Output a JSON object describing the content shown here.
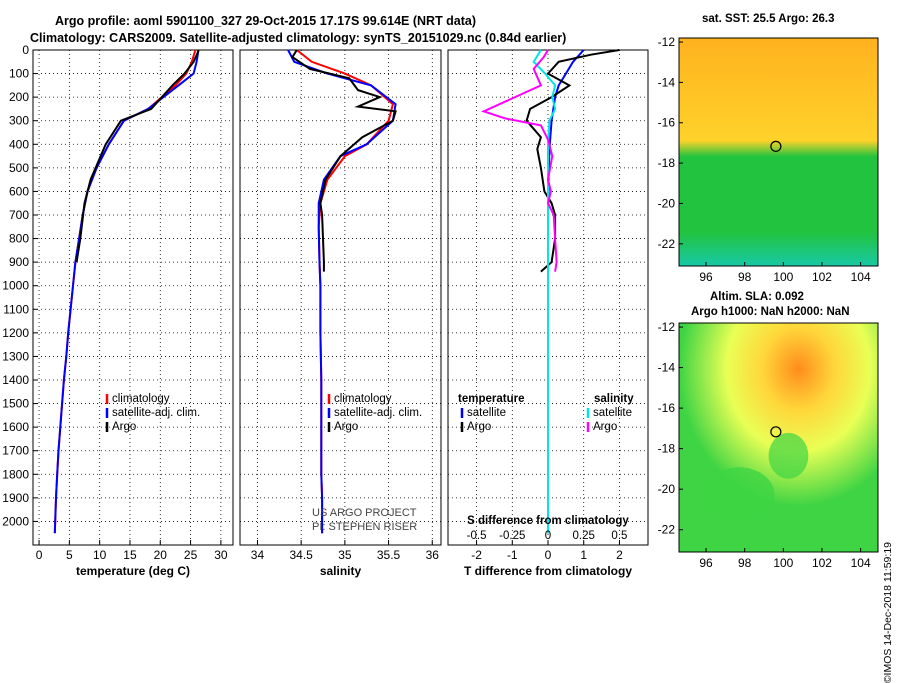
{
  "header": {
    "line1": "Argo profile: aoml 5901100_327 29-Oct-2015 17.17S 99.614E (NRT data)",
    "line2": "Climatology: CARS2009. Satellite-adjusted climatology: synTS_20151029.nc (0.84d earlier)"
  },
  "chart_data": [
    {
      "type": "line",
      "id": "temperature",
      "xlabel": "temperature (deg C)",
      "ylabel": "",
      "xlim": [
        -1,
        32
      ],
      "ylim": [
        2100,
        0
      ],
      "xticks": [
        0,
        5,
        10,
        15,
        20,
        25,
        30
      ],
      "yticks": [
        0,
        100,
        200,
        300,
        400,
        500,
        600,
        700,
        800,
        900,
        1000,
        1100,
        1200,
        1300,
        1400,
        1500,
        1600,
        1700,
        1800,
        1900,
        2000
      ],
      "legend": [
        "climatology",
        "satellite-adj. clim.",
        "Argo"
      ],
      "series": [
        {
          "name": "climatology",
          "color": "#ff0000",
          "x": [
            25.8,
            25.2,
            24.3,
            22.5,
            18.0,
            14.0,
            11.5,
            9.5,
            8.0,
            7.2,
            6.6,
            6.0,
            5.6,
            5.2,
            4.8,
            4.5,
            4.1,
            3.8,
            3.5,
            3.2,
            3.0,
            2.8,
            2.6
          ],
          "y": [
            0,
            50,
            100,
            150,
            250,
            300,
            400,
            500,
            600,
            700,
            800,
            900,
            1000,
            1100,
            1200,
            1300,
            1400,
            1500,
            1600,
            1700,
            1800,
            1900,
            2050
          ]
        },
        {
          "name": "satellite-adj. clim.",
          "color": "#0000ff",
          "x": [
            26.3,
            26.0,
            25.5,
            23.0,
            18.0,
            14.0,
            11.5,
            9.5,
            8.0,
            7.2,
            6.6,
            6.0,
            5.6,
            5.2,
            4.8,
            4.5,
            4.1,
            3.8,
            3.5,
            3.2,
            3.0,
            2.8,
            2.6
          ],
          "y": [
            0,
            50,
            100,
            150,
            250,
            300,
            400,
            500,
            600,
            700,
            800,
            900,
            1000,
            1100,
            1200,
            1300,
            1400,
            1500,
            1600,
            1700,
            1800,
            1900,
            2050
          ]
        },
        {
          "name": "Argo",
          "color": "#000000",
          "x": [
            26.3,
            26.2,
            25.5,
            24.0,
            22.0,
            18.5,
            13.5,
            11.0,
            8.5,
            7.5,
            6.8,
            6.2
          ],
          "y": [
            0,
            10,
            50,
            100,
            150,
            250,
            300,
            400,
            550,
            650,
            800,
            900
          ]
        }
      ]
    },
    {
      "type": "line",
      "id": "salinity",
      "xlabel": "salinity",
      "xlim": [
        33.8,
        36.1
      ],
      "ylim": [
        2100,
        0
      ],
      "xticks": [
        34,
        34.5,
        35,
        35.5,
        36
      ],
      "legend": [
        "climatology",
        "satellite-adj. clim.",
        "Argo"
      ],
      "series": [
        {
          "name": "climatology",
          "color": "#ff0000",
          "x": [
            34.45,
            34.62,
            35.0,
            35.3,
            35.55,
            35.5,
            35.25,
            35.0,
            34.8,
            34.72,
            34.7,
            34.71,
            34.72,
            34.72,
            34.73,
            34.73,
            34.73,
            34.74,
            34.74,
            34.74
          ],
          "y": [
            0,
            50,
            100,
            150,
            230,
            300,
            400,
            450,
            550,
            650,
            750,
            900,
            1000,
            1200,
            1400,
            1600,
            1800,
            1900,
            2000,
            2050
          ]
        },
        {
          "name": "satellite-adj. clim.",
          "color": "#0000ff",
          "x": [
            34.35,
            34.42,
            34.8,
            35.3,
            35.58,
            35.55,
            35.25,
            34.95,
            34.76,
            34.7,
            34.7,
            34.71,
            34.72,
            34.72,
            34.73,
            34.73,
            34.73,
            34.74,
            34.74,
            34.74
          ],
          "y": [
            0,
            50,
            100,
            150,
            230,
            300,
            400,
            450,
            550,
            650,
            750,
            900,
            1000,
            1200,
            1400,
            1600,
            1800,
            1900,
            2000,
            2050
          ]
        },
        {
          "name": "Argo",
          "color": "#000000",
          "x": [
            34.45,
            34.4,
            34.6,
            35.05,
            35.15,
            35.4,
            35.15,
            35.58,
            35.55,
            35.2,
            34.95,
            34.78,
            34.72,
            34.74,
            34.75,
            34.76,
            34.76
          ],
          "y": [
            0,
            30,
            80,
            120,
            170,
            200,
            240,
            260,
            300,
            370,
            450,
            550,
            650,
            700,
            800,
            900,
            940
          ]
        }
      ]
    },
    {
      "type": "line",
      "id": "difference",
      "xlabel": "T difference from climatology",
      "xlabel_top": "S difference from climatology",
      "xlim": [
        -2.8,
        2.8
      ],
      "ylim": [
        2100,
        0
      ],
      "xticks": [
        -2,
        -1,
        0,
        1,
        2
      ],
      "xtick_labels": [
        "-2",
        "-1",
        "0",
        "1",
        "2"
      ],
      "xticks_s": [
        -0.5,
        -0.25,
        0,
        0.25,
        0.5
      ],
      "xtick_labels_s": [
        "-0.5",
        "-0.25",
        "0",
        "0.25",
        "0.5"
      ],
      "legend_left_title": "temperature",
      "legend_right_title": "salinity",
      "legend_left": [
        "satellite",
        "Argo"
      ],
      "legend_right": [
        "satellite",
        "Argo"
      ],
      "series": [
        {
          "name": "T satellite",
          "color": "#0000ff",
          "units": "T",
          "x": [
            1.0,
            0.7,
            0.5,
            0.3,
            0.2,
            0.1,
            0.05,
            0.02,
            0.0,
            0.0,
            0.0,
            0.0,
            0.0,
            0.0
          ],
          "y": [
            0,
            50,
            100,
            150,
            200,
            300,
            400,
            500,
            700,
            900,
            1200,
            1500,
            1800,
            2050
          ]
        },
        {
          "name": "T Argo",
          "color": "#000000",
          "units": "T",
          "x": [
            2.0,
            1.2,
            0.3,
            0.0,
            0.6,
            0.1,
            -0.5,
            -0.6,
            -0.2,
            -0.3,
            -0.2,
            -0.1,
            0.1,
            0.2,
            0.2,
            0.1,
            -0.2
          ],
          "y": [
            0,
            20,
            50,
            100,
            150,
            200,
            250,
            300,
            370,
            420,
            500,
            600,
            650,
            700,
            800,
            900,
            940
          ]
        },
        {
          "name": "S satellite",
          "color": "#00e5e5",
          "units": "S",
          "x": [
            -0.05,
            -0.1,
            -0.02,
            0.05,
            0.03,
            0.05,
            0.01,
            0.0,
            0.0,
            0.0,
            0.0,
            0.0,
            0.0,
            0.0
          ],
          "y": [
            0,
            50,
            100,
            150,
            200,
            250,
            300,
            400,
            600,
            800,
            1200,
            1500,
            1800,
            2050
          ]
        },
        {
          "name": "S Argo",
          "color": "#ff00ff",
          "units": "S",
          "x": [
            0.0,
            -0.03,
            -0.1,
            -0.05,
            -0.45,
            -0.3,
            -0.05,
            0.0,
            0.03,
            0.0,
            0.02,
            0.0,
            0.04,
            0.05,
            0.06,
            0.05
          ],
          "y": [
            0,
            30,
            80,
            150,
            260,
            290,
            320,
            380,
            450,
            550,
            600,
            650,
            700,
            800,
            900,
            940
          ]
        }
      ]
    }
  ],
  "watermark": {
    "project": "US ARGO PROJECT",
    "pi": "PI: STEPHEN RISER"
  },
  "maps": {
    "sst_title": "sat. SST: 25.5 Argo: 26.3",
    "sla_title_line1": "Altim. SLA: 0.092",
    "sla_title_line2": "Argo h1000: NaN h2000: NaN",
    "xticks": [
      96,
      98,
      100,
      102,
      104
    ],
    "yticks": [
      -12,
      -14,
      -16,
      -18,
      -20,
      -22
    ],
    "xlim": [
      94.6,
      104.9
    ],
    "ylim": [
      -23.1,
      -11.8
    ],
    "argo_position": {
      "lon": 99.614,
      "lat": -17.17
    },
    "sst_colors": {
      "warm": "#ffb21e",
      "mid": "#ffd22a",
      "green": "#22c33e",
      "teal": "#18c9a6"
    },
    "sla_colors": {
      "high": "#ff8c1c",
      "mid": "#ffd63a",
      "low": "#3ed444",
      "pale": "#e9ff55"
    }
  },
  "footer": {
    "credit": "©IMOS 14-Dec-2018 11:59:19"
  }
}
